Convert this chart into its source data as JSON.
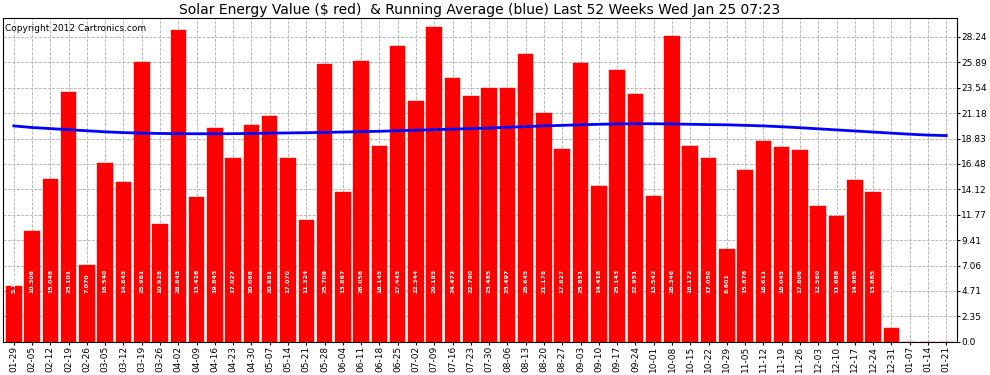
{
  "title": "Solar Energy Value ($ red)  & Running Average (blue) Last 52 Weeks Wed Jan 25 07:23",
  "copyright": "Copyright 2012 Cartronics.com",
  "bar_color": "#ff0000",
  "line_color": "#0000ff",
  "background_color": "#ffffff",
  "plot_bg_color": "#ffffff",
  "grid_color": "#b0b0b0",
  "categories": [
    "01-29",
    "02-05",
    "02-12",
    "02-19",
    "02-26",
    "03-05",
    "03-12",
    "03-19",
    "03-26",
    "04-02",
    "04-09",
    "04-16",
    "04-23",
    "04-30",
    "05-07",
    "05-14",
    "05-21",
    "05-28",
    "06-04",
    "06-11",
    "06-18",
    "06-25",
    "07-02",
    "07-09",
    "07-16",
    "07-23",
    "07-30",
    "08-06",
    "08-13",
    "08-20",
    "08-27",
    "09-03",
    "09-10",
    "09-17",
    "09-24",
    "10-01",
    "10-08",
    "10-15",
    "10-22",
    "10-29",
    "11-05",
    "11-12",
    "11-19",
    "11-26",
    "12-03",
    "12-10",
    "12-17",
    "12-24",
    "12-31",
    "01-07",
    "01-14",
    "01-21"
  ],
  "values": [
    5.155,
    10.306,
    15.048,
    23.101,
    7.07,
    16.54,
    14.845,
    25.961,
    10.928,
    28.845,
    13.428,
    19.845,
    17.027,
    20.068,
    20.881,
    17.07,
    11.324,
    25.709,
    13.867,
    26.056,
    18.145,
    27.445,
    22.344,
    29.185,
    24.472,
    22.79,
    23.485,
    23.497,
    26.645,
    21.178,
    17.827,
    25.851,
    14.418,
    25.143,
    22.951,
    13.542,
    28.346,
    18.172,
    17.05,
    8.601,
    15.878,
    18.611,
    18.045,
    17.806,
    12.56,
    11.688,
    14.965,
    13.885,
    1.302,
    0.0,
    0.0,
    0.0
  ],
  "running_avg": [
    20.0,
    19.85,
    19.75,
    19.65,
    19.55,
    19.45,
    19.38,
    19.33,
    19.3,
    19.28,
    19.27,
    19.27,
    19.28,
    19.3,
    19.33,
    19.35,
    19.37,
    19.4,
    19.43,
    19.47,
    19.5,
    19.55,
    19.6,
    19.65,
    19.7,
    19.75,
    19.8,
    19.87,
    19.93,
    20.0,
    20.05,
    20.1,
    20.15,
    20.18,
    20.2,
    20.2,
    20.18,
    20.15,
    20.12,
    20.1,
    20.05,
    20.0,
    19.92,
    19.83,
    19.73,
    19.63,
    19.53,
    19.43,
    19.33,
    19.23,
    19.15,
    19.1
  ],
  "yticks": [
    0.0,
    2.35,
    4.71,
    7.06,
    9.41,
    11.77,
    14.12,
    16.48,
    18.83,
    21.18,
    23.54,
    25.89,
    28.24
  ],
  "ylim": [
    0.0,
    30.0
  ],
  "title_fontsize": 10,
  "copyright_fontsize": 6.5,
  "tick_fontsize": 6.5,
  "value_fontsize": 4.5,
  "bar_width": 0.85
}
